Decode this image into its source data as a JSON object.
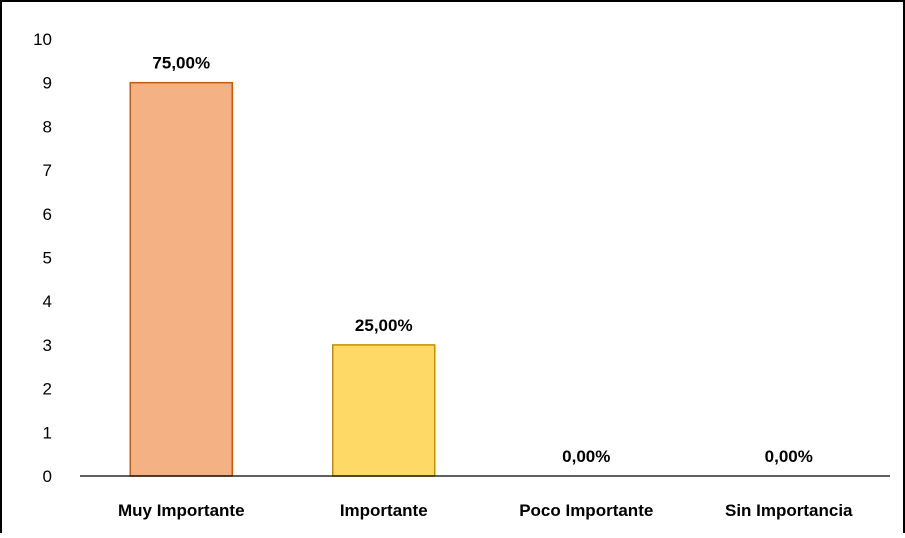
{
  "chart_data": {
    "type": "bar",
    "categories": [
      "Muy Importante",
      "Importante",
      "Poco Importante",
      "Sin Importancia"
    ],
    "values": [
      9,
      3,
      0,
      0
    ],
    "data_labels": [
      "75,00%",
      "25,00%",
      "0,00%",
      "0,00%"
    ],
    "colors": [
      "#F4B183",
      "#FFD966",
      "#FFFFFF",
      "#FFFFFF"
    ],
    "border_colors": [
      "#C55A11",
      "#BF9000",
      "#FFFFFF",
      "#FFFFFF"
    ],
    "y_ticks": [
      "0",
      "1",
      "2",
      "3",
      "4",
      "5",
      "6",
      "7",
      "8",
      "9",
      "10"
    ],
    "ylim": [
      0,
      10
    ],
    "grid": false,
    "legend": "none",
    "title": "",
    "xlabel": "",
    "ylabel": ""
  }
}
